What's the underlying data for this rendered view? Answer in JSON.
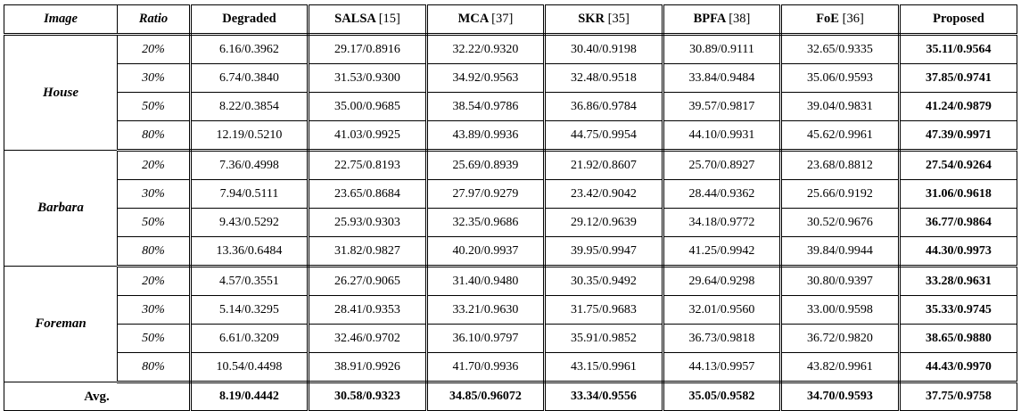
{
  "headers": {
    "image": "Image",
    "ratio": "Ratio",
    "degraded": "Degraded",
    "salsa": "SALSA",
    "salsa_ref": "[15]",
    "mca": "MCA",
    "mca_ref": "[37]",
    "skr": "SKR",
    "skr_ref": "[35]",
    "bpfa": "BPFA",
    "bpfa_ref": "[38]",
    "foe": "FoE",
    "foe_ref": "[36]",
    "proposed": "Proposed"
  },
  "groups": [
    {
      "image": "House",
      "rows": [
        {
          "ratio": "20%",
          "values": [
            "6.16/0.3962",
            "29.17/0.8916",
            "32.22/0.9320",
            "30.40/0.9198",
            "30.89/0.9111",
            "32.65/0.9335"
          ],
          "proposed": "35.11/0.9564"
        },
        {
          "ratio": "30%",
          "values": [
            "6.74/0.3840",
            "31.53/0.9300",
            "34.92/0.9563",
            "32.48/0.9518",
            "33.84/0.9484",
            "35.06/0.9593"
          ],
          "proposed": "37.85/0.9741"
        },
        {
          "ratio": "50%",
          "values": [
            "8.22/0.3854",
            "35.00/0.9685",
            "38.54/0.9786",
            "36.86/0.9784",
            "39.57/0.9817",
            "39.04/0.9831"
          ],
          "proposed": "41.24/0.9879"
        },
        {
          "ratio": "80%",
          "values": [
            "12.19/0.5210",
            "41.03/0.9925",
            "43.89/0.9936",
            "44.75/0.9954",
            "44.10/0.9931",
            "45.62/0.9961"
          ],
          "proposed": "47.39/0.9971"
        }
      ]
    },
    {
      "image": "Barbara",
      "rows": [
        {
          "ratio": "20%",
          "values": [
            "7.36/0.4998",
            "22.75/0.8193",
            "25.69/0.8939",
            "21.92/0.8607",
            "25.70/0.8927",
            "23.68/0.8812"
          ],
          "proposed": "27.54/0.9264"
        },
        {
          "ratio": "30%",
          "values": [
            "7.94/0.5111",
            "23.65/0.8684",
            "27.97/0.9279",
            "23.42/0.9042",
            "28.44/0.9362",
            "25.66/0.9192"
          ],
          "proposed": "31.06/0.9618"
        },
        {
          "ratio": "50%",
          "values": [
            "9.43/0.5292",
            "25.93/0.9303",
            "32.35/0.9686",
            "29.12/0.9639",
            "34.18/0.9772",
            "30.52/0.9676"
          ],
          "proposed": "36.77/0.9864"
        },
        {
          "ratio": "80%",
          "values": [
            "13.36/0.6484",
            "31.82/0.9827",
            "40.20/0.9937",
            "39.95/0.9947",
            "41.25/0.9942",
            "39.84/0.9944"
          ],
          "proposed": "44.30/0.9973"
        }
      ]
    },
    {
      "image": "Foreman",
      "rows": [
        {
          "ratio": "20%",
          "values": [
            "4.57/0.3551",
            "26.27/0.9065",
            "31.40/0.9480",
            "30.35/0.9492",
            "29.64/0.9298",
            "30.80/0.9397"
          ],
          "proposed": "33.28/0.9631"
        },
        {
          "ratio": "30%",
          "values": [
            "5.14/0.3295",
            "28.41/0.9353",
            "33.21/0.9630",
            "31.75/0.9683",
            "32.01/0.9560",
            "33.00/0.9598"
          ],
          "proposed": "35.33/0.9745"
        },
        {
          "ratio": "50%",
          "values": [
            "6.61/0.3209",
            "32.46/0.9702",
            "36.10/0.9797",
            "35.91/0.9852",
            "36.73/0.9818",
            "36.72/0.9820"
          ],
          "proposed": "38.65/0.9880"
        },
        {
          "ratio": "80%",
          "values": [
            "10.54/0.4498",
            "38.91/0.9926",
            "41.70/0.9936",
            "43.15/0.9961",
            "44.13/0.9957",
            "43.82/0.9961"
          ],
          "proposed": "44.43/0.9970"
        }
      ]
    }
  ],
  "average": {
    "label": "Avg.",
    "values": [
      "8.19/0.4442",
      "30.58/0.9323",
      "34.85/0.96072",
      "33.34/0.9556",
      "35.05/0.9582",
      "34.70/0.9593",
      "37.75/0.9758"
    ]
  }
}
